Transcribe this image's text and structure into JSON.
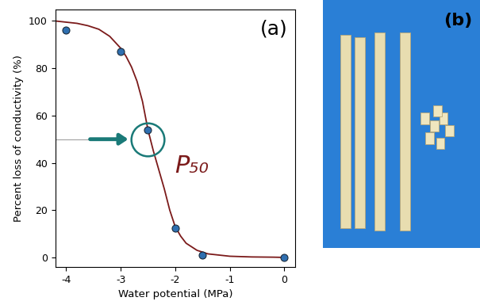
{
  "chart_data": {
    "type": "scatter",
    "panel_label": "(a)",
    "x_label": "Water potential (MPa)",
    "y_label": "Percent loss of conductivity (%)",
    "xlim": [
      -4.2,
      0.2
    ],
    "xticks": [
      -4,
      -3,
      -2,
      -1,
      0
    ],
    "ylim": [
      -4,
      105
    ],
    "yticks": [
      0,
      20,
      40,
      60,
      80,
      100
    ],
    "grid": false,
    "series": [
      {
        "type": "line",
        "color": "#7b1a1a",
        "line_style": "solid",
        "x": [
          -4.2,
          -4.0,
          -3.8,
          -3.6,
          -3.4,
          -3.2,
          -3.0,
          -2.9,
          -2.8,
          -2.7,
          -2.6,
          -2.5,
          -2.4,
          -2.3,
          -2.2,
          -2.1,
          -2.0,
          -1.9,
          -1.8,
          -1.6,
          -1.4,
          -1.2,
          -1.0,
          -0.6,
          -0.2,
          0.0
        ],
        "values": [
          100,
          99.5,
          99,
          98,
          96.5,
          93.5,
          88.5,
          85,
          80.5,
          74.5,
          66,
          54,
          45,
          37,
          29,
          20,
          13,
          9,
          6,
          3,
          1.5,
          1,
          0.5,
          0.2,
          0.1,
          0
        ]
      },
      {
        "type": "scatter",
        "color": "#2f6fb0",
        "marker": "circle",
        "x": [
          -4,
          -3,
          -2.5,
          -2,
          -1.5,
          0
        ],
        "values": [
          96,
          87,
          54,
          12.5,
          1,
          0
        ]
      }
    ],
    "p50": {
      "label": "P₅₀",
      "x": -2.5,
      "y": 50,
      "color": "#7b1a1a",
      "marker_color": "#1a7a78"
    }
  },
  "photo_panel": {
    "label": "(b)"
  }
}
